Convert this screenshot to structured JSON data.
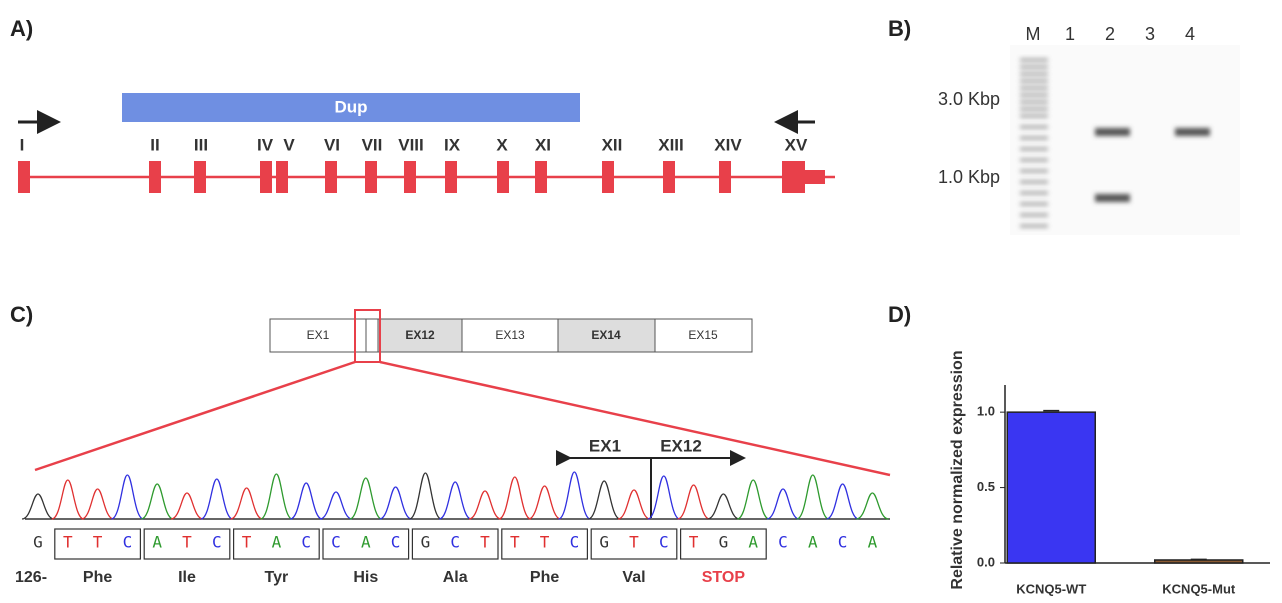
{
  "panel_labels": [
    "A)",
    "B)",
    "C)",
    "D)"
  ],
  "gene_map": {
    "dup": "Dup",
    "exons": [
      "I",
      "II",
      "III",
      "IV",
      "V",
      "VI",
      "VII",
      "VIII",
      "IX",
      "X",
      "XI",
      "XII",
      "XIII",
      "XIV",
      "XV"
    ]
  },
  "gel": {
    "lanes": [
      "M",
      "1",
      "2",
      "3",
      "4"
    ],
    "markers": [
      "3.0 Kbp",
      "1.0 Kbp"
    ]
  },
  "sequence": {
    "exon_boxes": [
      "EX1",
      "EX12",
      "EX13",
      "EX14",
      "EX15"
    ],
    "junction": [
      "EX1",
      "EX12"
    ],
    "bases": [
      "G",
      "T",
      "T",
      "C",
      "A",
      "T",
      "C",
      "T",
      "A",
      "C",
      "C",
      "A",
      "C",
      "G",
      "C",
      "T",
      "T",
      "T",
      "C",
      "G",
      "T",
      "C",
      "T",
      "G",
      "A",
      "C",
      "A",
      "C",
      "A"
    ],
    "position": "126-",
    "codons": [
      "Phe",
      "Ile",
      "Tyr",
      "His",
      "Ala",
      "Phe",
      "Val",
      "STOP"
    ]
  },
  "chart_data": {
    "type": "bar",
    "y_label": "Relative normalized expression",
    "categories": [
      "KCNQ5-WT",
      "KCNQ5-Mut"
    ],
    "values": [
      1.0,
      0.02
    ],
    "errors": [
      0.01,
      0.004
    ],
    "colors": [
      "#3a36f2",
      "#8a5a32"
    ],
    "ylim": [
      0,
      1.18
    ],
    "yticks": [
      {
        "value": 0,
        "label": "0.0"
      },
      {
        "value": 0.5,
        "label": "0.5"
      },
      {
        "value": 1,
        "label": "1.0"
      }
    ]
  }
}
